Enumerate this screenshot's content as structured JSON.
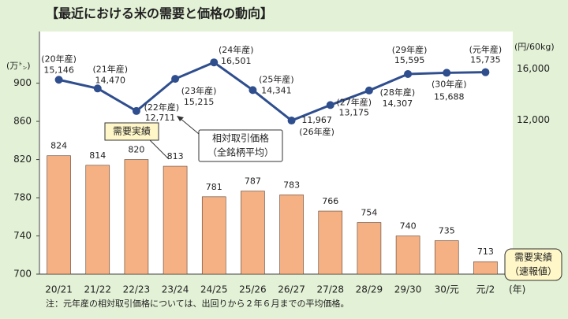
{
  "chart_data": {
    "type": "bar_line",
    "title": "【最近における米の需要と価格の動向】",
    "categories": [
      "20/21",
      "21/22",
      "22/23",
      "23/24",
      "24/25",
      "25/26",
      "26/27",
      "27/28",
      "28/29",
      "29/30",
      "30/元",
      "元/2"
    ],
    "x_unit": "(年)",
    "y_label": "(万㌧)",
    "y2_label": "(円/60kg)",
    "ylim": [
      700,
      950
    ],
    "yticks": [
      700,
      740,
      780,
      820,
      860,
      900
    ],
    "y2lim": [
      0,
      18600
    ],
    "y2ticks": [
      {
        "value": 12000,
        "label": "12,000"
      },
      {
        "value": 16000,
        "label": "16,000"
      }
    ],
    "series": [
      {
        "name": "需要実績",
        "type": "bar",
        "color": "#f5b183",
        "last_label_color": "#e00000",
        "values": [
          824,
          814,
          820,
          813,
          781,
          787,
          783,
          766,
          754,
          740,
          735,
          713
        ]
      },
      {
        "name": "相対取引価格（全銘柄平均）",
        "type": "line",
        "axis": "y2",
        "color": "#2f4e8e",
        "values": [
          15146,
          14470,
          12711,
          15215,
          16501,
          14341,
          11967,
          13175,
          14307,
          15595,
          15688,
          15735
        ],
        "value_labels": [
          "15,146",
          "14,470",
          "12,711",
          "15,215",
          "16,501",
          "14,341",
          "11,967",
          "13,175",
          "14,307",
          "15,595",
          "15,688",
          "15,735"
        ],
        "point_labels": [
          "(20年産)",
          "(21年産)",
          "(22年産)",
          "(23年産)",
          "(24年産)",
          "(25年産)",
          "(26年産)",
          "(27年産)",
          "(28年産)",
          "(29年産)",
          "(30年産)",
          "(元年産)"
        ]
      }
    ],
    "annotations": {
      "demand": "需要実績",
      "price": [
        "相対取引価格",
        "（全銘柄平均）"
      ],
      "flash": [
        "需要実績",
        "（速報値）"
      ]
    },
    "note": "注：元年産の相対取引価格については、出回りから２年６月までの平均価格。"
  }
}
